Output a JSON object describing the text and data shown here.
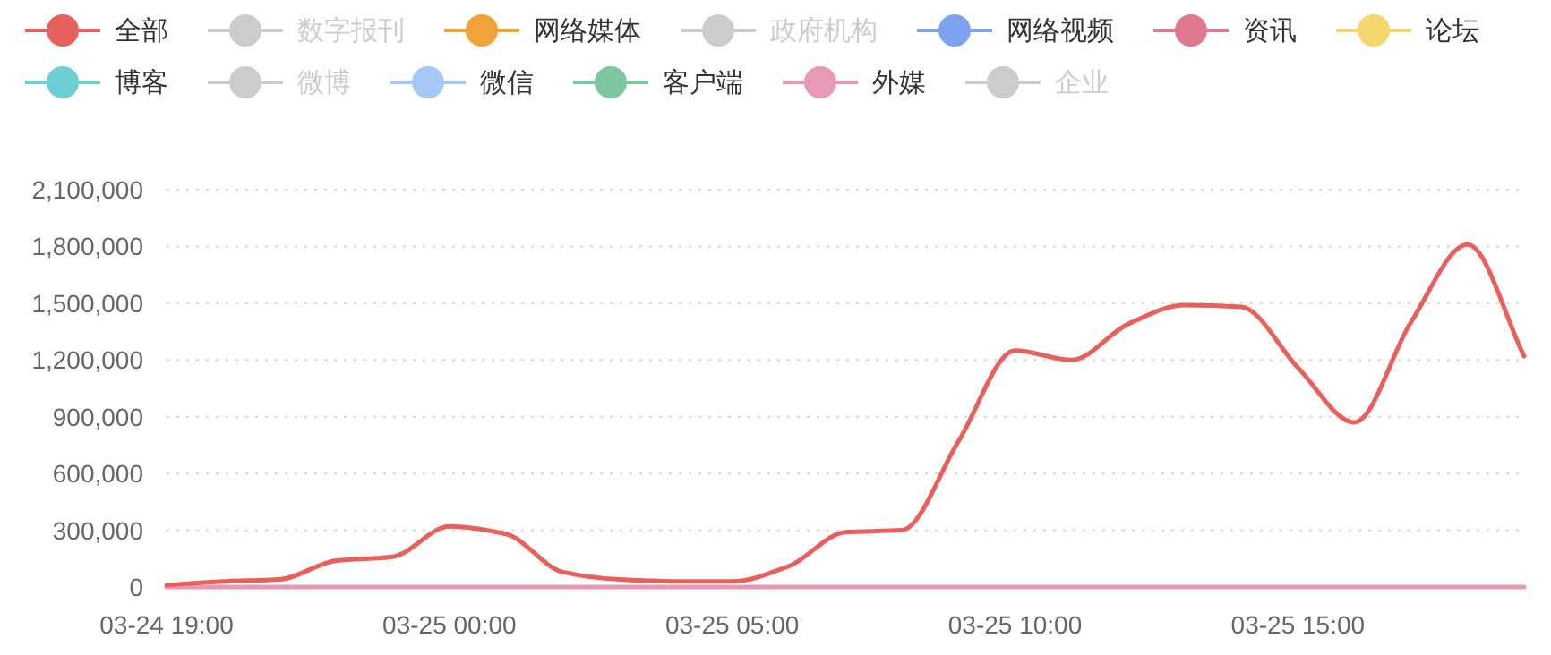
{
  "chart_data": {
    "type": "line",
    "legend": "top",
    "grid": "y",
    "marker": "none",
    "line_style": "solid",
    "categories": [
      "03-24 19:00",
      null,
      null,
      null,
      null,
      "03-25 00:00",
      null,
      null,
      null,
      null,
      "03-25 05:00",
      null,
      null,
      null,
      null,
      "03-25 10:00",
      null,
      null,
      null,
      null,
      "03-25 15:00",
      null,
      null,
      null,
      null
    ],
    "ylim": [
      0,
      2100000
    ],
    "yticks": [
      {
        "value": 0,
        "label": "0"
      },
      {
        "value": 300000,
        "label": "300,000"
      },
      {
        "value": 600000,
        "label": "600,000"
      },
      {
        "value": 900000,
        "label": "900,000"
      },
      {
        "value": 1200000,
        "label": "1,200,000"
      },
      {
        "value": 1500000,
        "label": "1,500,000"
      },
      {
        "value": 1800000,
        "label": "1,800,000"
      },
      {
        "value": 2100000,
        "label": "2,100,000"
      }
    ],
    "series": [
      {
        "name": "全部",
        "color": "#e8605c",
        "values": [
          10000,
          30000,
          40000,
          140000,
          160000,
          320000,
          280000,
          80000,
          40000,
          30000,
          30000,
          110000,
          290000,
          300000,
          770000,
          1250000,
          1200000,
          1390000,
          1490000,
          1480000,
          1160000,
          870000,
          1400000,
          1810000,
          1220000
        ]
      },
      {
        "name": "数字报刊",
        "color": "#cccccc",
        "values": [
          null,
          null,
          null,
          null,
          null,
          null,
          null,
          null,
          null,
          null,
          null,
          null,
          null,
          null,
          null,
          null,
          null,
          null,
          null,
          null,
          null,
          null,
          null,
          null,
          null
        ]
      },
      {
        "name": "网络媒体",
        "color": "#f0a336",
        "values": [
          null,
          null,
          null,
          null,
          null,
          null,
          null,
          null,
          null,
          null,
          null,
          null,
          null,
          null,
          null,
          null,
          null,
          null,
          null,
          null,
          null,
          null,
          null,
          null,
          null
        ]
      },
      {
        "name": "政府机构",
        "color": "#cccccc",
        "values": [
          null,
          null,
          null,
          null,
          null,
          null,
          null,
          null,
          null,
          null,
          null,
          null,
          null,
          null,
          null,
          null,
          null,
          null,
          null,
          null,
          null,
          null,
          null,
          null,
          null
        ]
      },
      {
        "name": "网络视频",
        "color": "#7fa2f0",
        "values": [
          null,
          null,
          null,
          null,
          null,
          null,
          null,
          null,
          null,
          null,
          null,
          null,
          null,
          null,
          null,
          null,
          null,
          null,
          null,
          null,
          null,
          null,
          null,
          null,
          null
        ]
      },
      {
        "name": "资讯",
        "color": "#e07890",
        "values": [
          null,
          null,
          null,
          null,
          null,
          null,
          null,
          null,
          null,
          null,
          null,
          null,
          null,
          null,
          null,
          null,
          null,
          null,
          null,
          null,
          null,
          null,
          null,
          null,
          null
        ]
      },
      {
        "name": "论坛",
        "color": "#f5d76e",
        "values": [
          null,
          null,
          null,
          null,
          null,
          null,
          null,
          null,
          null,
          null,
          null,
          null,
          null,
          null,
          null,
          null,
          null,
          null,
          null,
          null,
          null,
          null,
          null,
          null,
          null
        ]
      },
      {
        "name": "博客",
        "color": "#6ccfd3",
        "values": [
          null,
          null,
          null,
          null,
          null,
          null,
          null,
          null,
          null,
          null,
          null,
          null,
          null,
          null,
          null,
          null,
          null,
          null,
          null,
          null,
          null,
          null,
          null,
          null,
          null
        ]
      },
      {
        "name": "微博",
        "color": "#cccccc",
        "values": [
          null,
          null,
          null,
          null,
          null,
          null,
          null,
          null,
          null,
          null,
          null,
          null,
          null,
          null,
          null,
          null,
          null,
          null,
          null,
          null,
          null,
          null,
          null,
          null,
          null
        ]
      },
      {
        "name": "微信",
        "color": "#a6c8f7",
        "values": [
          null,
          null,
          null,
          null,
          null,
          null,
          null,
          null,
          null,
          null,
          null,
          null,
          null,
          null,
          null,
          null,
          null,
          null,
          null,
          null,
          null,
          null,
          null,
          null,
          null
        ]
      },
      {
        "name": "客户端",
        "color": "#7cc6a0",
        "values": [
          null,
          null,
          null,
          null,
          null,
          null,
          null,
          null,
          null,
          null,
          null,
          null,
          null,
          null,
          null,
          null,
          null,
          null,
          null,
          null,
          null,
          null,
          null,
          null,
          null
        ]
      },
      {
        "name": "外媒",
        "color": "#e899b8",
        "values": [
          0,
          0,
          0,
          0,
          0,
          0,
          0,
          0,
          0,
          0,
          0,
          0,
          0,
          0,
          0,
          0,
          0,
          0,
          0,
          0,
          0,
          0,
          0,
          0,
          0
        ]
      },
      {
        "name": "企业",
        "color": "#cccccc",
        "values": [
          null,
          null,
          null,
          null,
          null,
          null,
          null,
          null,
          null,
          null,
          null,
          null,
          null,
          null,
          null,
          null,
          null,
          null,
          null,
          null,
          null,
          null,
          null,
          null,
          null
        ]
      }
    ]
  }
}
